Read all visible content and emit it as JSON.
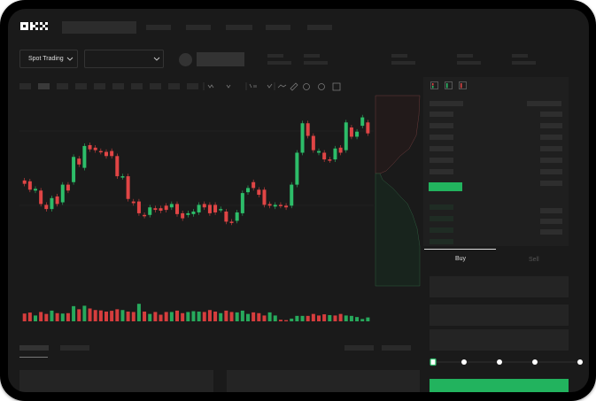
{
  "header": {
    "logo_text": "OKX"
  },
  "pair_bar": {
    "mode_label": "Spot Trading",
    "mode_chevron": "chevron-down-icon",
    "pair_chevron": "chevron-down-icon"
  },
  "toolbar": {
    "icons": [
      "indicator-icon",
      "indicator-icon",
      "fx-icon",
      "line-icon",
      "ruler-icon",
      "camera-icon",
      "settings-icon",
      "fullscreen-icon"
    ]
  },
  "orderbook": {
    "view_icons": [
      "book-both-icon",
      "book-bids-icon",
      "book-asks-icon"
    ]
  },
  "order_form": {
    "tabs": [
      {
        "label": "Buy",
        "active": true
      },
      {
        "label": "Sell",
        "active": false
      }
    ],
    "slider_percent": 0
  },
  "colors": {
    "up": "#2dbd69",
    "down": "#e04545",
    "accent": "#22b35e",
    "bg": "#1a1a1a"
  },
  "chart": {
    "type": "candlestick",
    "candles": {
      "open": [
        97,
        96,
        85,
        85,
        68,
        63,
        78,
        71,
        92,
        95,
        123,
        112,
        139,
        136,
        132,
        131,
        132,
        126,
        101,
        102,
        72,
        72,
        56,
        56,
        64,
        64,
        67,
        65,
        69,
        58,
        56,
        57,
        59,
        69,
        68,
        68,
        62,
        60,
        48,
        49,
        58,
        83,
        95,
        86,
        86,
        69,
        66,
        68,
        67,
        67,
        92,
        130,
        165,
        150,
        130,
        130,
        122,
        122,
        136,
        133,
        160,
        149,
        162,
        166
      ],
      "close": [
        93,
        86,
        87,
        69,
        63,
        76,
        69,
        92,
        85,
        125,
        116,
        138,
        134,
        133,
        131,
        126,
        126,
        102,
        102,
        75,
        70,
        58,
        55,
        65,
        62,
        61,
        62,
        69,
        57,
        52,
        58,
        60,
        68,
        65,
        58,
        59,
        63,
        48,
        47,
        59,
        82,
        88,
        88,
        80,
        68,
        67,
        68,
        67,
        65,
        92,
        130,
        165,
        150,
        133,
        132,
        122,
        121,
        135,
        130,
        166,
        149,
        155,
        172,
        153
      ]
    },
    "volume": [
      40,
      45,
      30,
      48,
      38,
      55,
      42,
      40,
      42,
      78,
      62,
      80,
      66,
      58,
      56,
      50,
      54,
      62,
      58,
      50,
      48,
      90,
      50,
      38,
      48,
      34,
      48,
      48,
      55,
      42,
      48,
      52,
      50,
      48,
      58,
      50,
      42,
      55,
      48,
      46,
      55,
      38,
      46,
      42,
      30,
      46,
      30,
      8,
      6,
      14,
      28,
      28,
      28,
      38,
      30,
      36,
      32,
      30,
      38,
      30,
      28,
      22,
      12,
      20
    ],
    "volume_up": [
      false,
      false,
      true,
      false,
      false,
      true,
      false,
      true,
      false,
      true,
      false,
      true,
      false,
      false,
      false,
      false,
      false,
      false,
      true,
      false,
      false,
      true,
      false,
      true,
      false,
      false,
      false,
      true,
      false,
      false,
      true,
      true,
      true,
      false,
      false,
      false,
      true,
      false,
      false,
      true,
      true,
      true,
      false,
      false,
      false,
      true,
      true,
      false,
      false,
      true,
      true,
      true,
      false,
      false,
      false,
      false,
      true,
      false,
      false,
      true,
      true,
      true,
      true,
      true
    ]
  }
}
